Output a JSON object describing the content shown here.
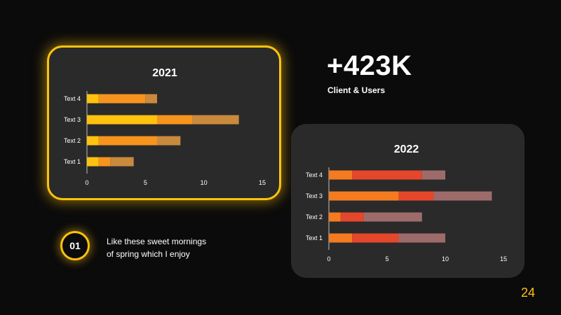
{
  "stat": {
    "value": "+423K",
    "caption": "Client & Users"
  },
  "step": {
    "number": "01",
    "text_line1": "Like these sweet mornings",
    "text_line2": "of spring which I enjoy"
  },
  "page_number": "24",
  "colors": {
    "accent": "#ffc20e",
    "card": "#2a2a2a",
    "background": "#0b0b0b"
  },
  "chart_data": [
    {
      "type": "bar",
      "orientation": "horizontal",
      "stacked": true,
      "title": "2021",
      "categories": [
        "Text 1",
        "Text 2",
        "Text 3",
        "Text 4"
      ],
      "series": [
        {
          "values": [
            1,
            1,
            6,
            1
          ],
          "color": "#ffc20e"
        },
        {
          "values": [
            1,
            5,
            3,
            4
          ],
          "color": "#f7941d"
        },
        {
          "values": [
            2,
            2,
            4,
            1
          ],
          "color": "#c98a3e"
        }
      ],
      "xlim": [
        0,
        15
      ],
      "xticks": [
        0,
        5,
        10,
        15
      ],
      "grid": false,
      "legend": "none"
    },
    {
      "type": "bar",
      "orientation": "horizontal",
      "stacked": true,
      "title": "2022",
      "categories": [
        "Text 1",
        "Text 2",
        "Text 3",
        "Text 4"
      ],
      "series": [
        {
          "values": [
            2,
            1,
            6,
            2
          ],
          "color": "#f47b20"
        },
        {
          "values": [
            4,
            2,
            3,
            6
          ],
          "color": "#e4472b"
        },
        {
          "values": [
            4,
            5,
            5,
            2
          ],
          "color": "#9e6b6b"
        }
      ],
      "xlim": [
        0,
        15
      ],
      "xticks": [
        0,
        5,
        10,
        15
      ],
      "grid": false,
      "legend": "none"
    }
  ]
}
